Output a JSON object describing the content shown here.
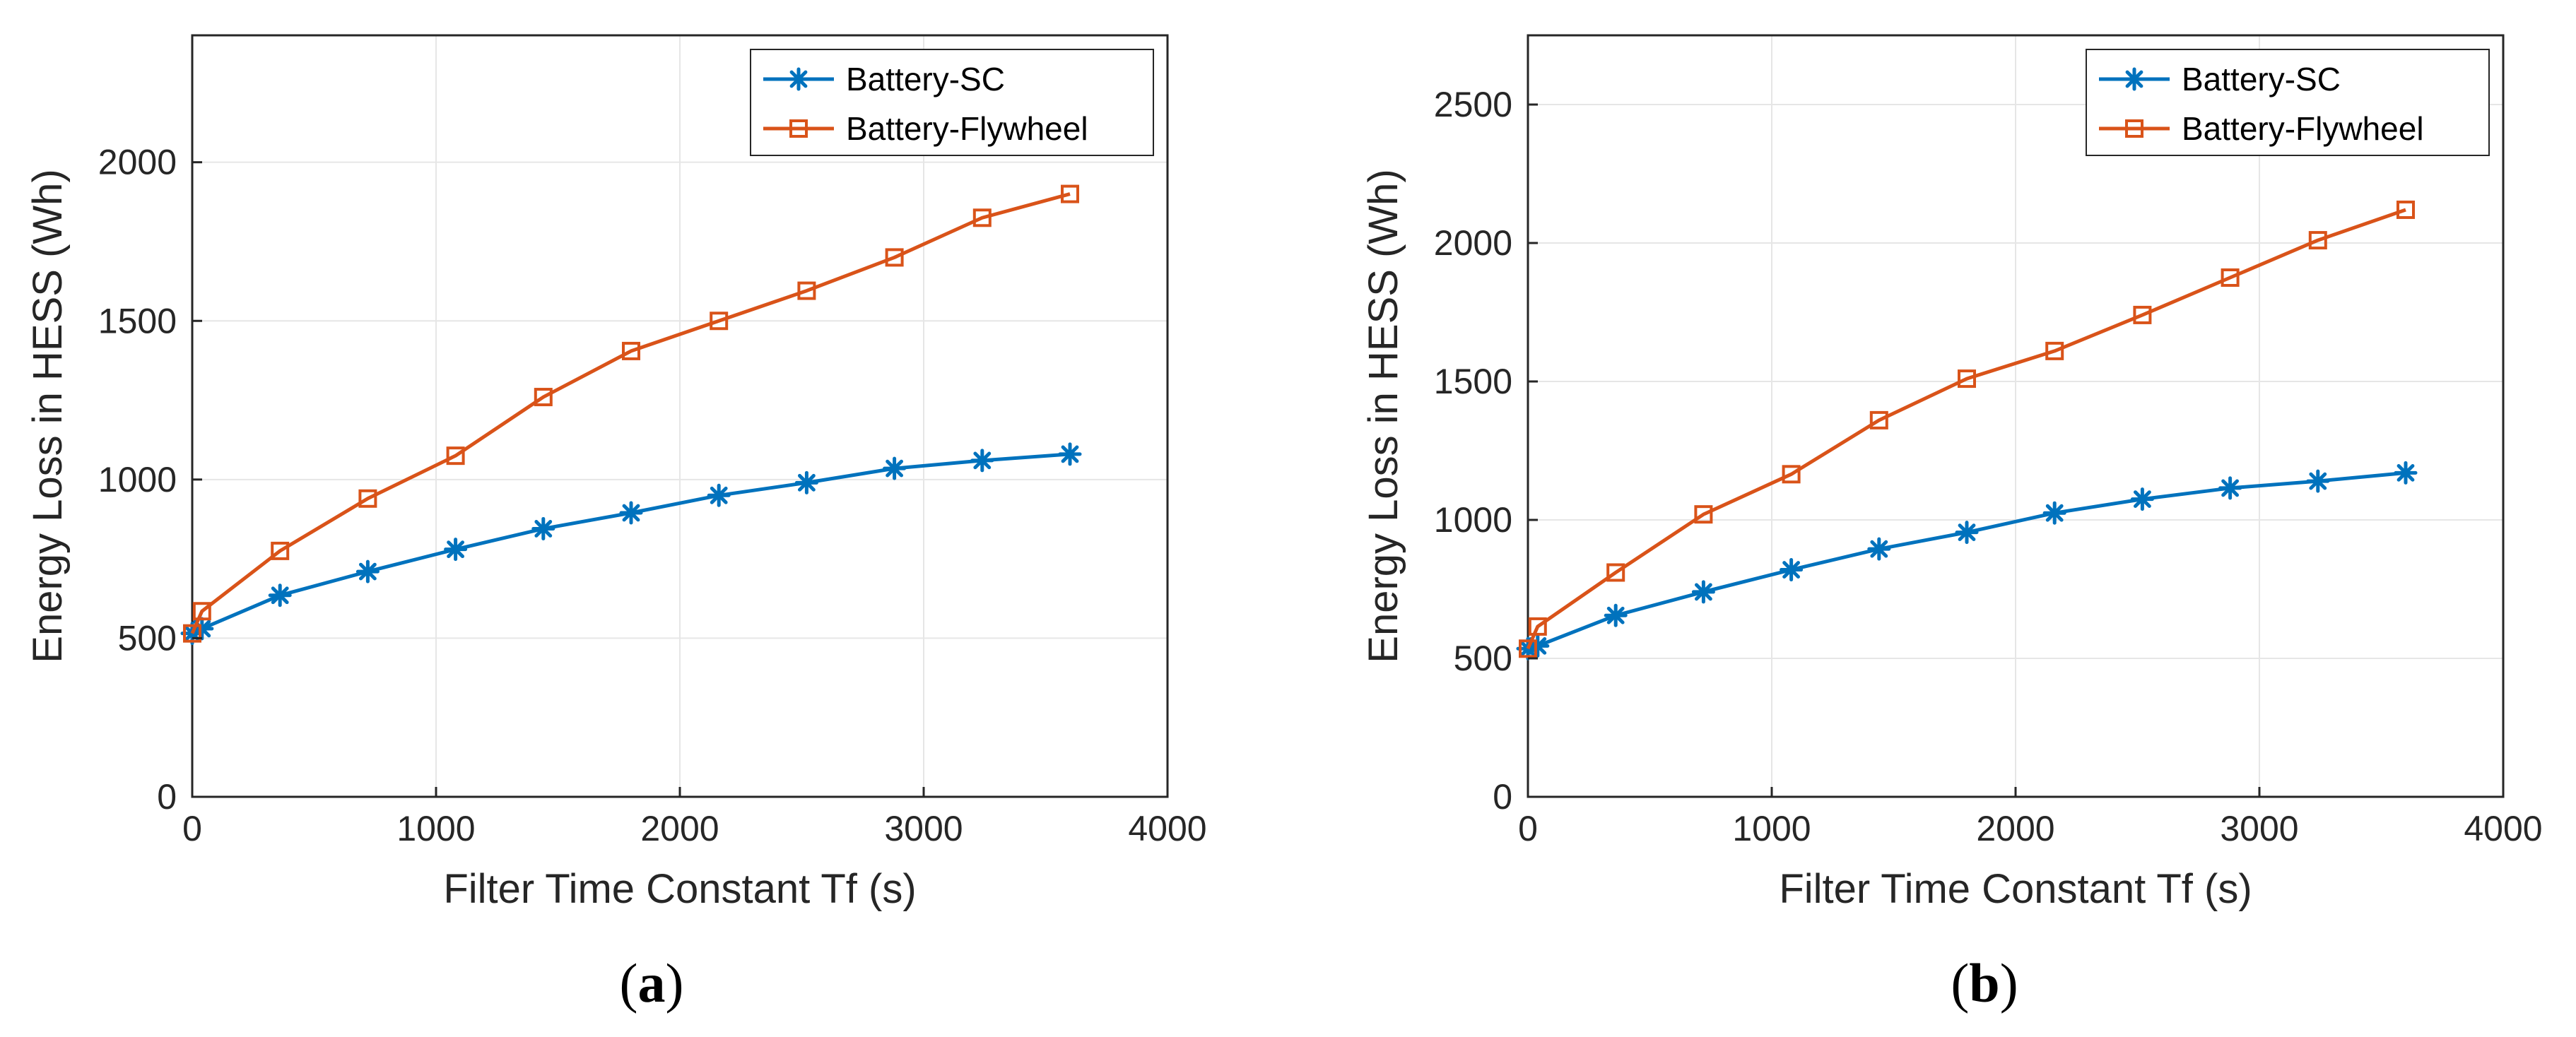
{
  "figure": {
    "colors": {
      "battery_sc": "#0072BD",
      "battery_flywheel": "#D95319",
      "grid": "#e6e6e6",
      "axis": "#262626"
    }
  },
  "chart_data": [
    {
      "type": "line",
      "caption_prefix": "(",
      "caption_letter": "a",
      "caption_suffix": ")",
      "xlabel": "Filter Time Constant Tf (s)",
      "ylabel": "Energy Loss in HESS (Wh)",
      "xlim": [
        0,
        4000
      ],
      "ylim": [
        0,
        2400
      ],
      "xticks": [
        0,
        1000,
        2000,
        3000,
        4000
      ],
      "yticks": [
        0,
        500,
        1000,
        1500,
        2000
      ],
      "grid": true,
      "legend_position": "top-right",
      "series": [
        {
          "name": "Battery-SC",
          "marker": "asterisk",
          "color": "#0072BD",
          "x": [
            0,
            40,
            360,
            720,
            1080,
            1440,
            1800,
            2160,
            2520,
            2880,
            3240,
            3600
          ],
          "values": [
            515,
            530,
            635,
            710,
            780,
            845,
            895,
            950,
            990,
            1035,
            1060,
            1080
          ]
        },
        {
          "name": "Battery-Flywheel",
          "marker": "square",
          "color": "#D95319",
          "x": [
            0,
            40,
            360,
            720,
            1080,
            1440,
            1800,
            2160,
            2520,
            2880,
            3240,
            3600
          ],
          "values": [
            515,
            585,
            775,
            940,
            1075,
            1260,
            1405,
            1500,
            1595,
            1700,
            1825,
            1900
          ]
        }
      ]
    },
    {
      "type": "line",
      "caption_prefix": "(",
      "caption_letter": "b",
      "caption_suffix": ")",
      "xlabel": "Filter Time Constant Tf (s)",
      "ylabel": "Energy Loss in HESS (Wh)",
      "xlim": [
        0,
        4000
      ],
      "ylim": [
        0,
        2750
      ],
      "xticks": [
        0,
        1000,
        2000,
        3000,
        4000
      ],
      "yticks": [
        0,
        500,
        1000,
        1500,
        2000,
        2500
      ],
      "grid": true,
      "legend_position": "top-right",
      "series": [
        {
          "name": "Battery-SC",
          "marker": "asterisk",
          "color": "#0072BD",
          "x": [
            0,
            40,
            360,
            720,
            1080,
            1440,
            1800,
            2160,
            2520,
            2880,
            3240,
            3600
          ],
          "values": [
            535,
            545,
            655,
            740,
            820,
            895,
            955,
            1025,
            1075,
            1115,
            1140,
            1170
          ]
        },
        {
          "name": "Battery-Flywheel",
          "marker": "square",
          "color": "#D95319",
          "x": [
            0,
            40,
            360,
            720,
            1080,
            1440,
            1800,
            2160,
            2520,
            2880,
            3240,
            3600
          ],
          "values": [
            535,
            615,
            810,
            1020,
            1165,
            1360,
            1510,
            1610,
            1740,
            1875,
            2010,
            2120
          ]
        }
      ]
    }
  ]
}
